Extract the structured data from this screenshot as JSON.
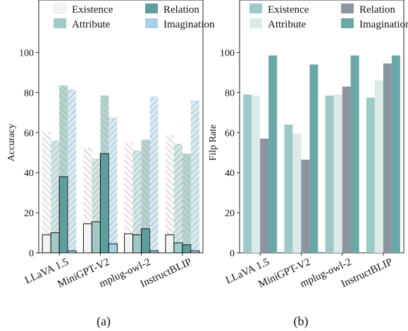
{
  "chart_data": [
    {
      "type": "bar",
      "panel_label": "(a)",
      "ylabel": "Accuracy",
      "ylim": [
        0,
        110
      ],
      "yticks": [
        0,
        20,
        40,
        60,
        80,
        100
      ],
      "grid": false,
      "legend_position": "top",
      "categories": [
        "LLaVA 1.5",
        "MiniGPT-V2",
        "mplug-owl-2",
        "InstructBLIP"
      ],
      "series": [
        {
          "name": "Existence",
          "color": "#f3f5f5",
          "values": [
            9,
            14.5,
            9.5,
            9
          ],
          "original_values": [
            60.5,
            52.5,
            55,
            59
          ]
        },
        {
          "name": "Attribute",
          "color": "#9fcac6",
          "values": [
            10,
            15.5,
            9,
            5
          ],
          "original_values": [
            56,
            47,
            51,
            54.5
          ]
        },
        {
          "name": "Relation",
          "color": "#5e9e9c",
          "values": [
            38,
            49.5,
            12,
            4
          ],
          "original_values": [
            83.5,
            78.5,
            56.5,
            49.5
          ]
        },
        {
          "name": "Imagination",
          "color": "#a6d1e5",
          "values": [
            1,
            4.5,
            1,
            1
          ],
          "original_values": [
            81.5,
            67.5,
            78,
            76
          ]
        }
      ]
    },
    {
      "type": "bar",
      "panel_label": "(b)",
      "ylabel": "Filp Rate",
      "ylim": [
        0,
        110
      ],
      "yticks": [
        0,
        20,
        40,
        60,
        80,
        100
      ],
      "grid": false,
      "legend_position": "top",
      "categories": [
        "LLaVA 1.5",
        "MiniGPT-V2",
        "mplug-owl-2",
        "InstructBLIP"
      ],
      "series": [
        {
          "name": "Existence",
          "color": "#9ccac6",
          "values": [
            79,
            64,
            78.5,
            77.5
          ]
        },
        {
          "name": "Attribute",
          "color": "#dbe9e8",
          "values": [
            78.5,
            59.5,
            79,
            86
          ]
        },
        {
          "name": "Relation",
          "color": "#8d95a0",
          "values": [
            57,
            46.5,
            83,
            94.5
          ]
        },
        {
          "name": "Imagination",
          "color": "#6aa7a6",
          "values": [
            98.5,
            94,
            98.5,
            98.5
          ]
        }
      ]
    }
  ]
}
